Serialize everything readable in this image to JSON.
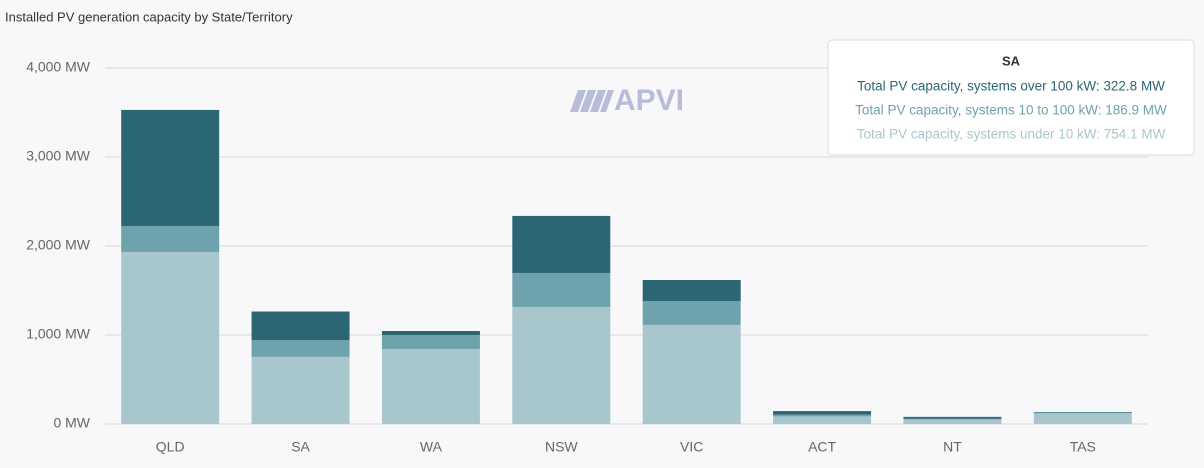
{
  "chart_data": {
    "type": "stacked-bar",
    "title": "Installed PV generation capacity by State/Territory",
    "watermark": "APVI",
    "categories": [
      "QLD",
      "SA",
      "WA",
      "NSW",
      "VIC",
      "ACT",
      "NT",
      "TAS"
    ],
    "series": [
      {
        "color": "#a7c7cd",
        "values": [
          1933,
          754.1,
          843,
          1315,
          1113,
          85,
          50,
          120
        ]
      },
      {
        "color": "#6ea3ae",
        "values": [
          292,
          186.9,
          157,
          382,
          269,
          20,
          10,
          10
        ]
      },
      {
        "color": "#2a6674",
        "values": [
          1304,
          322.8,
          45,
          641,
          236,
          40,
          20,
          5
        ]
      }
    ],
    "ylim": [
      0,
      4000
    ],
    "yticks": [
      {
        "value": 0,
        "label": "0 MW"
      },
      {
        "value": 1000,
        "label": "1,000 MW"
      },
      {
        "value": 2000,
        "label": "2,000 MW"
      },
      {
        "value": 3000,
        "label": "3,000 MW"
      },
      {
        "value": 4000,
        "label": "4,000 MW"
      }
    ],
    "grid": true,
    "tooltip": {
      "title": "SA",
      "lines": [
        "Total PV capacity, systems over 100 kW: 322.8 MW",
        "Total PV capacity, systems 10 to 100 kW: 186.9 MW",
        "Total PV capacity, systems under 10 kW: 754.1 MW"
      ]
    }
  }
}
